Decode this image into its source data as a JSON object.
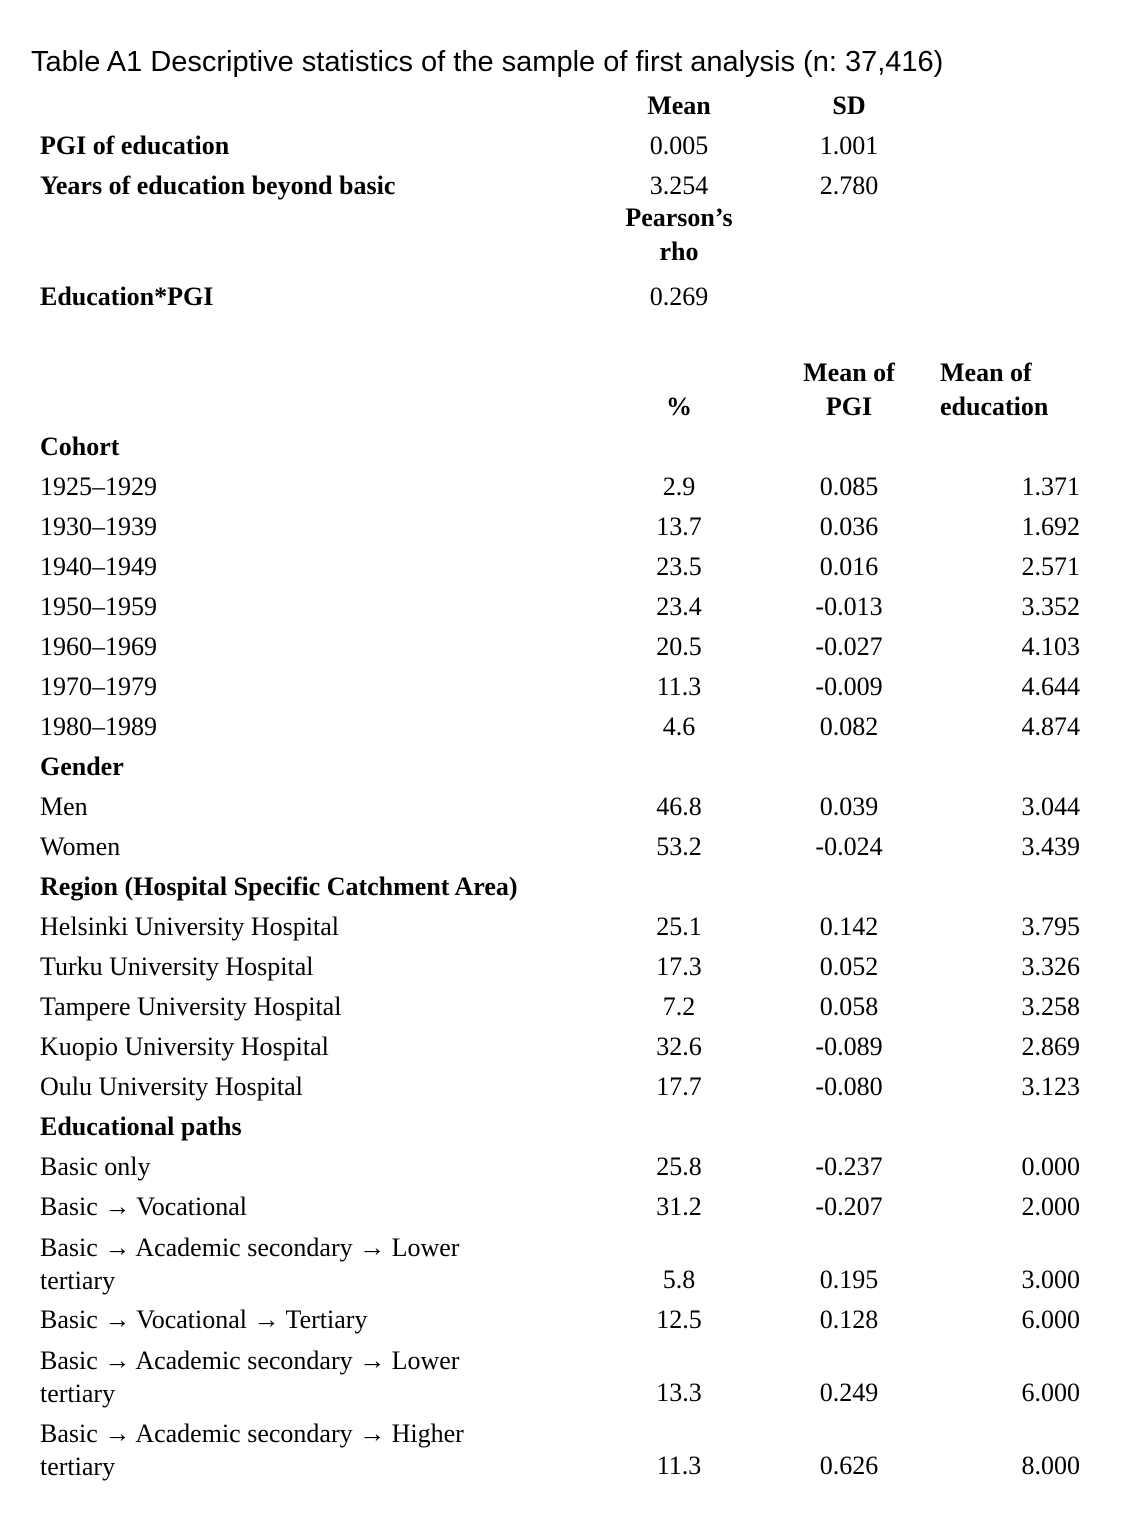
{
  "title": "Table A1 Descriptive statistics of the sample of first analysis (n: 37,416)",
  "top_table": {
    "header": {
      "mean": "Mean",
      "sd": "SD"
    },
    "rows": [
      {
        "label": "PGI of education",
        "mean": "0.005",
        "sd": "1.001"
      },
      {
        "label": "Years of education beyond basic",
        "mean": "3.254",
        "sd": "2.780"
      }
    ],
    "corr_header": "Pearson’s rho",
    "corr_row": {
      "label": "Education*PGI",
      "value": "0.269"
    }
  },
  "main_table": {
    "header": {
      "pct": "%",
      "mean_pgi": "Mean of PGI",
      "mean_edu": "Mean of education"
    },
    "sections": [
      {
        "title": "Cohort",
        "rows": [
          {
            "label": "1925–1929",
            "pct": "2.9",
            "pgi": "0.085",
            "edu": "1.371"
          },
          {
            "label": "1930–1939",
            "pct": "13.7",
            "pgi": "0.036",
            "edu": "1.692"
          },
          {
            "label": "1940–1949",
            "pct": "23.5",
            "pgi": "0.016",
            "edu": "2.571"
          },
          {
            "label": "1950–1959",
            "pct": "23.4",
            "pgi": "-0.013",
            "edu": "3.352"
          },
          {
            "label": "1960–1969",
            "pct": "20.5",
            "pgi": "-0.027",
            "edu": "4.103"
          },
          {
            "label": "1970–1979",
            "pct": "11.3",
            "pgi": "-0.009",
            "edu": "4.644"
          },
          {
            "label": "1980–1989",
            "pct": "4.6",
            "pgi": "0.082",
            "edu": "4.874"
          }
        ]
      },
      {
        "title": "Gender",
        "rows": [
          {
            "label": "Men",
            "pct": "46.8",
            "pgi": "0.039",
            "edu": "3.044"
          },
          {
            "label": "Women",
            "pct": "53.2",
            "pgi": "-0.024",
            "edu": "3.439"
          }
        ]
      },
      {
        "title": "Region (Hospital Specific Catchment Area)",
        "rows": [
          {
            "label": "Helsinki University Hospital",
            "pct": "25.1",
            "pgi": "0.142",
            "edu": "3.795"
          },
          {
            "label": "Turku University Hospital",
            "pct": "17.3",
            "pgi": "0.052",
            "edu": "3.326"
          },
          {
            "label": "Tampere University Hospital",
            "pct": "7.2",
            "pgi": "0.058",
            "edu": "3.258"
          },
          {
            "label": "Kuopio University Hospital",
            "pct": "32.6",
            "pgi": "-0.089",
            "edu": "2.869"
          },
          {
            "label": "Oulu University Hospital",
            "pct": "17.7",
            "pgi": "-0.080",
            "edu": "3.123"
          }
        ]
      },
      {
        "title": "Educational paths",
        "rows": [
          {
            "label": "Basic only",
            "pct": "25.8",
            "pgi": "-0.237",
            "edu": "0.000"
          },
          {
            "label": "Basic → Vocational",
            "pct": "31.2",
            "pgi": "-0.207",
            "edu": "2.000"
          },
          {
            "label": "Basic → Academic secondary → Lower tertiary",
            "wrap": true,
            "pct": "5.8",
            "pgi": "0.195",
            "edu": "3.000"
          },
          {
            "label": "Basic → Vocational → Tertiary",
            "pct": "12.5",
            "pgi": "0.128",
            "edu": "6.000"
          },
          {
            "label": "Basic → Academic secondary → Lower tertiary",
            "wrap": true,
            "pct": "13.3",
            "pgi": "0.249",
            "edu": "6.000"
          },
          {
            "label": "Basic → Academic secondary → Higher tertiary",
            "wrap": true,
            "pct": "11.3",
            "pgi": "0.626",
            "edu": "8.000"
          }
        ]
      }
    ]
  }
}
